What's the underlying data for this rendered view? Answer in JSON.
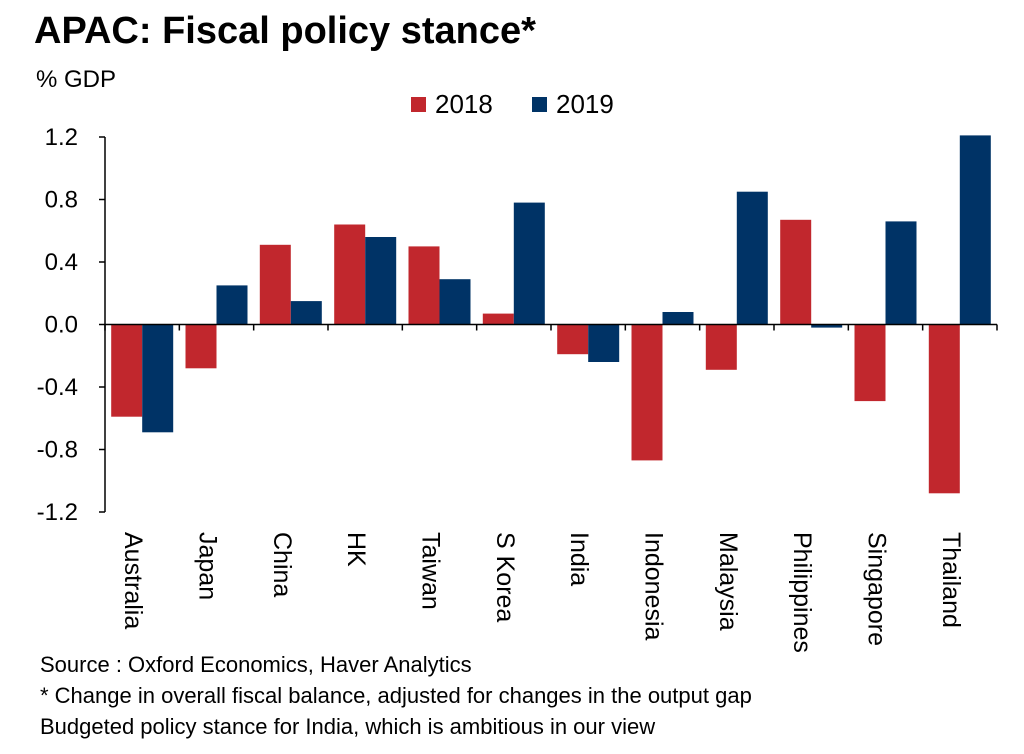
{
  "title": "APAC: Fiscal policy stance*",
  "notes": {
    "source": "Source : Oxford Economics, Haver Analytics",
    "footnote": "* Change in overall fiscal balance, adjusted for changes in the output gap",
    "india_note": "Budgeted policy stance for India, which is ambitious in our view"
  },
  "chart_data": {
    "type": "bar",
    "title": "APAC: Fiscal policy stance*",
    "ylabel": "% GDP",
    "xlabel": "",
    "ylim": [
      -1.2,
      1.2
    ],
    "yticks": [
      "-1.2",
      "-0.8",
      "-0.4",
      "0.0",
      "0.4",
      "0.8",
      "1.2"
    ],
    "ytick_values": [
      -1.2,
      -0.8,
      -0.4,
      0.0,
      0.4,
      0.8,
      1.2
    ],
    "grid": false,
    "legend_position": "top-center",
    "categories": [
      "Australia",
      "Japan",
      "China",
      "HK",
      "Taiwan",
      "S Korea",
      "India",
      "Indonesia",
      "Malaysia",
      "Philippines",
      "Singapore",
      "Thailand"
    ],
    "series": [
      {
        "name": "2018",
        "color": "#c1272d",
        "values": [
          -0.59,
          -0.28,
          0.51,
          0.64,
          0.5,
          0.07,
          -0.19,
          -0.87,
          -0.29,
          0.67,
          -0.49,
          -1.08
        ]
      },
      {
        "name": "2019",
        "color": "#003366",
        "values": [
          -0.69,
          0.25,
          0.15,
          0.56,
          0.29,
          0.78,
          -0.24,
          0.08,
          0.85,
          -0.02,
          0.66,
          1.21
        ]
      }
    ]
  }
}
